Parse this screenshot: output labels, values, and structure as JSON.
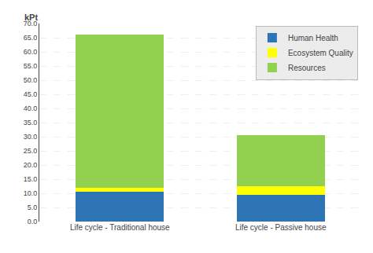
{
  "chart_data": {
    "type": "bar",
    "stacked": true,
    "ylabel": "kPt",
    "categories": [
      "Life cycle - Traditional house",
      "Life cycle - Passive house"
    ],
    "series": [
      {
        "name": "Human Health",
        "color": "#2E75B6",
        "values": [
          10.5,
          9.5
        ]
      },
      {
        "name": "Ecosystem Quality",
        "color": "#FFFF00",
        "values": [
          1.5,
          3.0
        ]
      },
      {
        "name": "Resources",
        "color": "#92D050",
        "values": [
          54.0,
          18.0
        ]
      }
    ],
    "ylim": [
      0,
      70
    ],
    "yticks": [
      {
        "value": 0,
        "label": "0.0"
      },
      {
        "value": 5,
        "label": "5.0"
      },
      {
        "value": 10,
        "label": "10.0"
      },
      {
        "value": 15,
        "label": "15.0"
      },
      {
        "value": 20,
        "label": "20.0"
      },
      {
        "value": 25,
        "label": "25.0"
      },
      {
        "value": 30,
        "label": "30.0"
      },
      {
        "value": 35,
        "label": "35.0"
      },
      {
        "value": 40,
        "label": "40.0"
      },
      {
        "value": 45,
        "label": "45.0"
      },
      {
        "value": 50,
        "label": "50.0"
      },
      {
        "value": 55,
        "label": "55.0"
      },
      {
        "value": 60,
        "label": "60.0"
      },
      {
        "value": 65,
        "label": "65.0"
      },
      {
        "value": 70,
        "label": "70.0"
      }
    ],
    "grid": true,
    "legend": "upper right"
  }
}
